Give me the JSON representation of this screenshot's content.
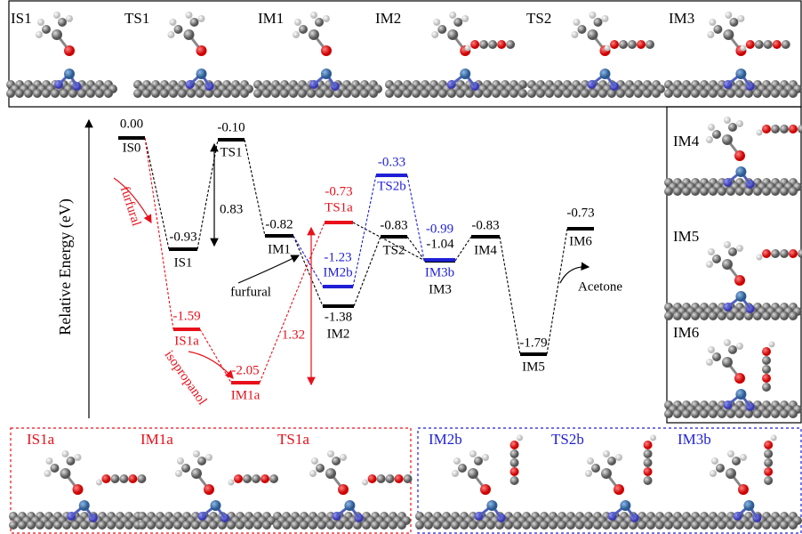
{
  "y_axis_label": "Relative Energy (eV)",
  "top_panel": {
    "labels": [
      "IS1",
      "TS1",
      "IM1",
      "IM2",
      "TS2",
      "IM3"
    ]
  },
  "right_panel": {
    "labels": [
      "IM4",
      "IM5",
      "IM6"
    ]
  },
  "bottom_left_panel": {
    "labels": [
      "IS1a",
      "IM1a",
      "TS1a"
    ]
  },
  "bottom_right_panel": {
    "labels": [
      "IM2b",
      "TS2b",
      "IM3b"
    ]
  },
  "levels": [
    {
      "name": "IS0",
      "energy": "0.00",
      "color": "#000000"
    },
    {
      "name": "IS1",
      "energy": "-0.93",
      "color": "#000000"
    },
    {
      "name": "TS1",
      "energy": "-0.10",
      "color": "#000000"
    },
    {
      "name": "IM1",
      "energy": "-0.82",
      "color": "#000000"
    },
    {
      "name": "IM2",
      "energy": "-1.38",
      "color": "#000000"
    },
    {
      "name": "TS2",
      "energy": "-0.83",
      "color": "#000000"
    },
    {
      "name": "IM3",
      "energy": "-1.04",
      "color": "#000000"
    },
    {
      "name": "IM4",
      "energy": "-0.83",
      "color": "#000000"
    },
    {
      "name": "IM5",
      "energy": "-1.79",
      "color": "#000000"
    },
    {
      "name": "IM6",
      "energy": "-0.73",
      "color": "#000000"
    },
    {
      "name": "IS1a",
      "energy": "-1.59",
      "color": "#e8101a"
    },
    {
      "name": "IM1a",
      "energy": "-2.05",
      "color": "#e8101a"
    },
    {
      "name": "TS1a",
      "energy": "-0.73",
      "color": "#e8101a"
    },
    {
      "name": "IM2b",
      "energy": "-1.23",
      "color": "#1f1fd6"
    },
    {
      "name": "TS2b",
      "energy": "-0.33",
      "color": "#1f1fd6"
    },
    {
      "name": "IM3b",
      "energy": "-0.99",
      "color": "#1f1fd6"
    }
  ],
  "annotations": [
    "furfural",
    "isopropanol",
    "0.83",
    "1.32",
    "furfural",
    "Acetone"
  ]
}
